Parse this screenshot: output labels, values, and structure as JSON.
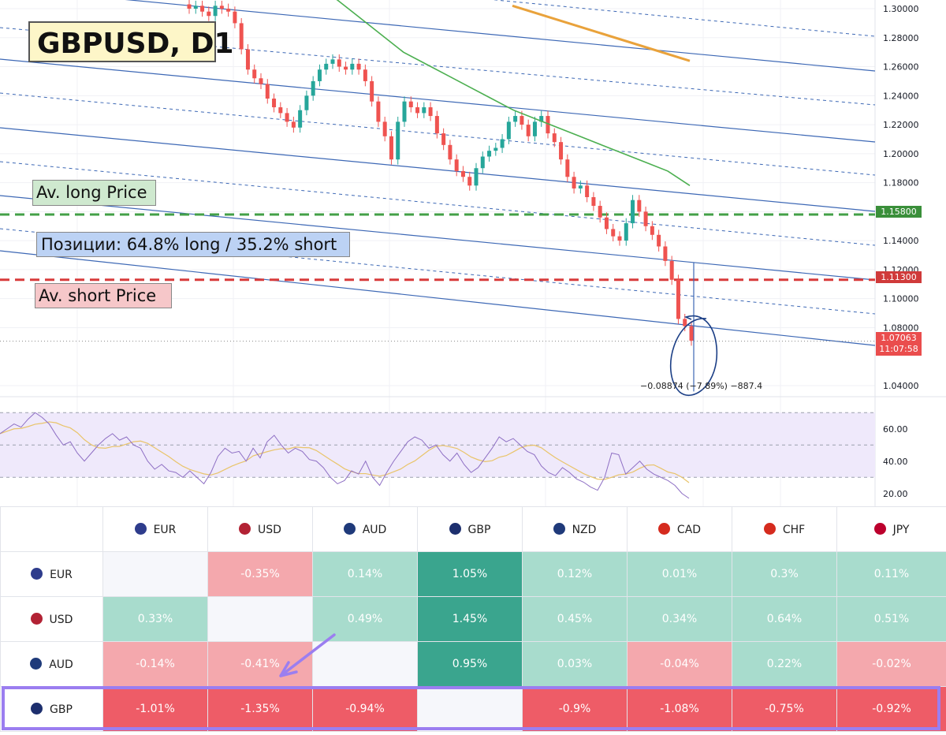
{
  "chart_data": {
    "type": "candlestick",
    "title": "GBPUSD, D1",
    "symbol": "GBPUSD",
    "timeframe": "D1",
    "y_ticks": [
      "1.30000",
      "1.28000",
      "1.26000",
      "1.24000",
      "1.22000",
      "1.20000",
      "1.18000",
      "1.16000",
      "1.14000",
      "1.12000",
      "1.10000",
      "1.08000",
      "1.04000"
    ],
    "ylim": [
      1.034,
      1.306
    ],
    "close_series": [
      1.3,
      1.302,
      1.298,
      1.295,
      1.302,
      1.3,
      1.298,
      1.29,
      1.272,
      1.258,
      1.252,
      1.248,
      1.238,
      1.232,
      1.228,
      1.222,
      1.218,
      1.23,
      1.24,
      1.25,
      1.258,
      1.262,
      1.265,
      1.26,
      1.258,
      1.262,
      1.258,
      1.25,
      1.236,
      1.222,
      1.212,
      1.196,
      1.222,
      1.236,
      1.232,
      1.228,
      1.232,
      1.226,
      1.214,
      1.206,
      1.196,
      1.188,
      1.184,
      1.178,
      1.19,
      1.198,
      1.202,
      1.204,
      1.21,
      1.222,
      1.226,
      1.22,
      1.212,
      1.222,
      1.226,
      1.214,
      1.208,
      1.196,
      1.184,
      1.176,
      1.178,
      1.17,
      1.164,
      1.156,
      1.148,
      1.143,
      1.14,
      1.152,
      1.168,
      1.16,
      1.15,
      1.144,
      1.136,
      1.126,
      1.113,
      1.086,
      1.081,
      1.071
    ],
    "moving_averages": [
      {
        "color": "#e9a23b",
        "from": 1.302,
        "to": 1.264
      },
      {
        "color": "#4caf50",
        "values": [
          1.316,
          1.306,
          1.294,
          1.282,
          1.27,
          1.262,
          1.254,
          1.246,
          1.238,
          1.23,
          1.224,
          1.218,
          1.212,
          1.206,
          1.2,
          1.194,
          1.188,
          1.178
        ]
      }
    ],
    "annotations": {
      "av_long_label": "Av. long Price",
      "av_long_price": 1.158,
      "av_short_label": "Av. short Price",
      "av_short_price": 1.113,
      "positions_label": "Позиции: 64.8% long / 35.2% short",
      "measure_text": "−0.08874 (−7.89%) −887.4"
    },
    "price_tags": {
      "long": "1.15800",
      "short": "1.11300",
      "last": "1.07063",
      "countdown": "11:07:58"
    },
    "rsi": {
      "ticks": [
        "60.00",
        "40.00",
        "20.00"
      ],
      "ylim": [
        15,
        75
      ],
      "band": [
        30,
        70
      ],
      "values": [
        57,
        60,
        63,
        61,
        66,
        70,
        67,
        63,
        56,
        50,
        52,
        45,
        40,
        45,
        50,
        54,
        57,
        53,
        55,
        50,
        48,
        40,
        35,
        38,
        34,
        33,
        30,
        34,
        30,
        26,
        33,
        43,
        48,
        45,
        46,
        40,
        48,
        42,
        52,
        56,
        50,
        45,
        48,
        46,
        41,
        40,
        36,
        30,
        26,
        28,
        34,
        32,
        40,
        30,
        25,
        33,
        40,
        46,
        52,
        55,
        53,
        48,
        50,
        44,
        40,
        45,
        38,
        33,
        36,
        42,
        48,
        55,
        52,
        54,
        50,
        46,
        44,
        37,
        33,
        31,
        36,
        33,
        29,
        27,
        24,
        22,
        30,
        45,
        44,
        32,
        36,
        40,
        35,
        32,
        30,
        28,
        25,
        20,
        17
      ],
      "signal_color": "#e9c46a",
      "line_color": "#8e6fc4"
    }
  },
  "table": {
    "columns": [
      {
        "code": "EUR",
        "flag_color": "#2e3c8c"
      },
      {
        "code": "USD",
        "flag_color": "#b22234"
      },
      {
        "code": "AUD",
        "flag_color": "#1f3a7a"
      },
      {
        "code": "GBP",
        "flag_color": "#1d2f6e"
      },
      {
        "code": "NZD",
        "flag_color": "#1f3a7a"
      },
      {
        "code": "CAD",
        "flag_color": "#d52b1e"
      },
      {
        "code": "CHF",
        "flag_color": "#d52b1e"
      },
      {
        "code": "JPY",
        "flag_color": "#bc002d"
      }
    ],
    "rows": [
      {
        "code": "EUR",
        "flag_color": "#2e3c8c",
        "cells": [
          "",
          "-0.35%",
          "0.14%",
          "1.05%",
          "0.12%",
          "0.01%",
          "0.3%",
          "0.11%"
        ]
      },
      {
        "code": "USD",
        "flag_color": "#b22234",
        "cells": [
          "0.33%",
          "",
          "0.49%",
          "1.45%",
          "0.45%",
          "0.34%",
          "0.64%",
          "0.51%"
        ]
      },
      {
        "code": "AUD",
        "flag_color": "#1f3a7a",
        "cells": [
          "-0.14%",
          "-0.41%",
          "",
          "0.95%",
          "0.03%",
          "-0.04%",
          "0.22%",
          "-0.02%"
        ]
      },
      {
        "code": "GBP",
        "flag_color": "#1d2f6e",
        "cells": [
          "-1.01%",
          "-1.35%",
          "-0.94%",
          "",
          "-0.9%",
          "-1.08%",
          "-0.75%",
          "-0.92%"
        ]
      }
    ],
    "colors": {
      "pos_light": "#a8dccd",
      "pos_strong": "#3aa58e",
      "neg_light": "#f4a8ad",
      "neg_strong": "#ee5c67",
      "empty": "#f6f7fb",
      "highlight": "#9b7ef0"
    }
  }
}
